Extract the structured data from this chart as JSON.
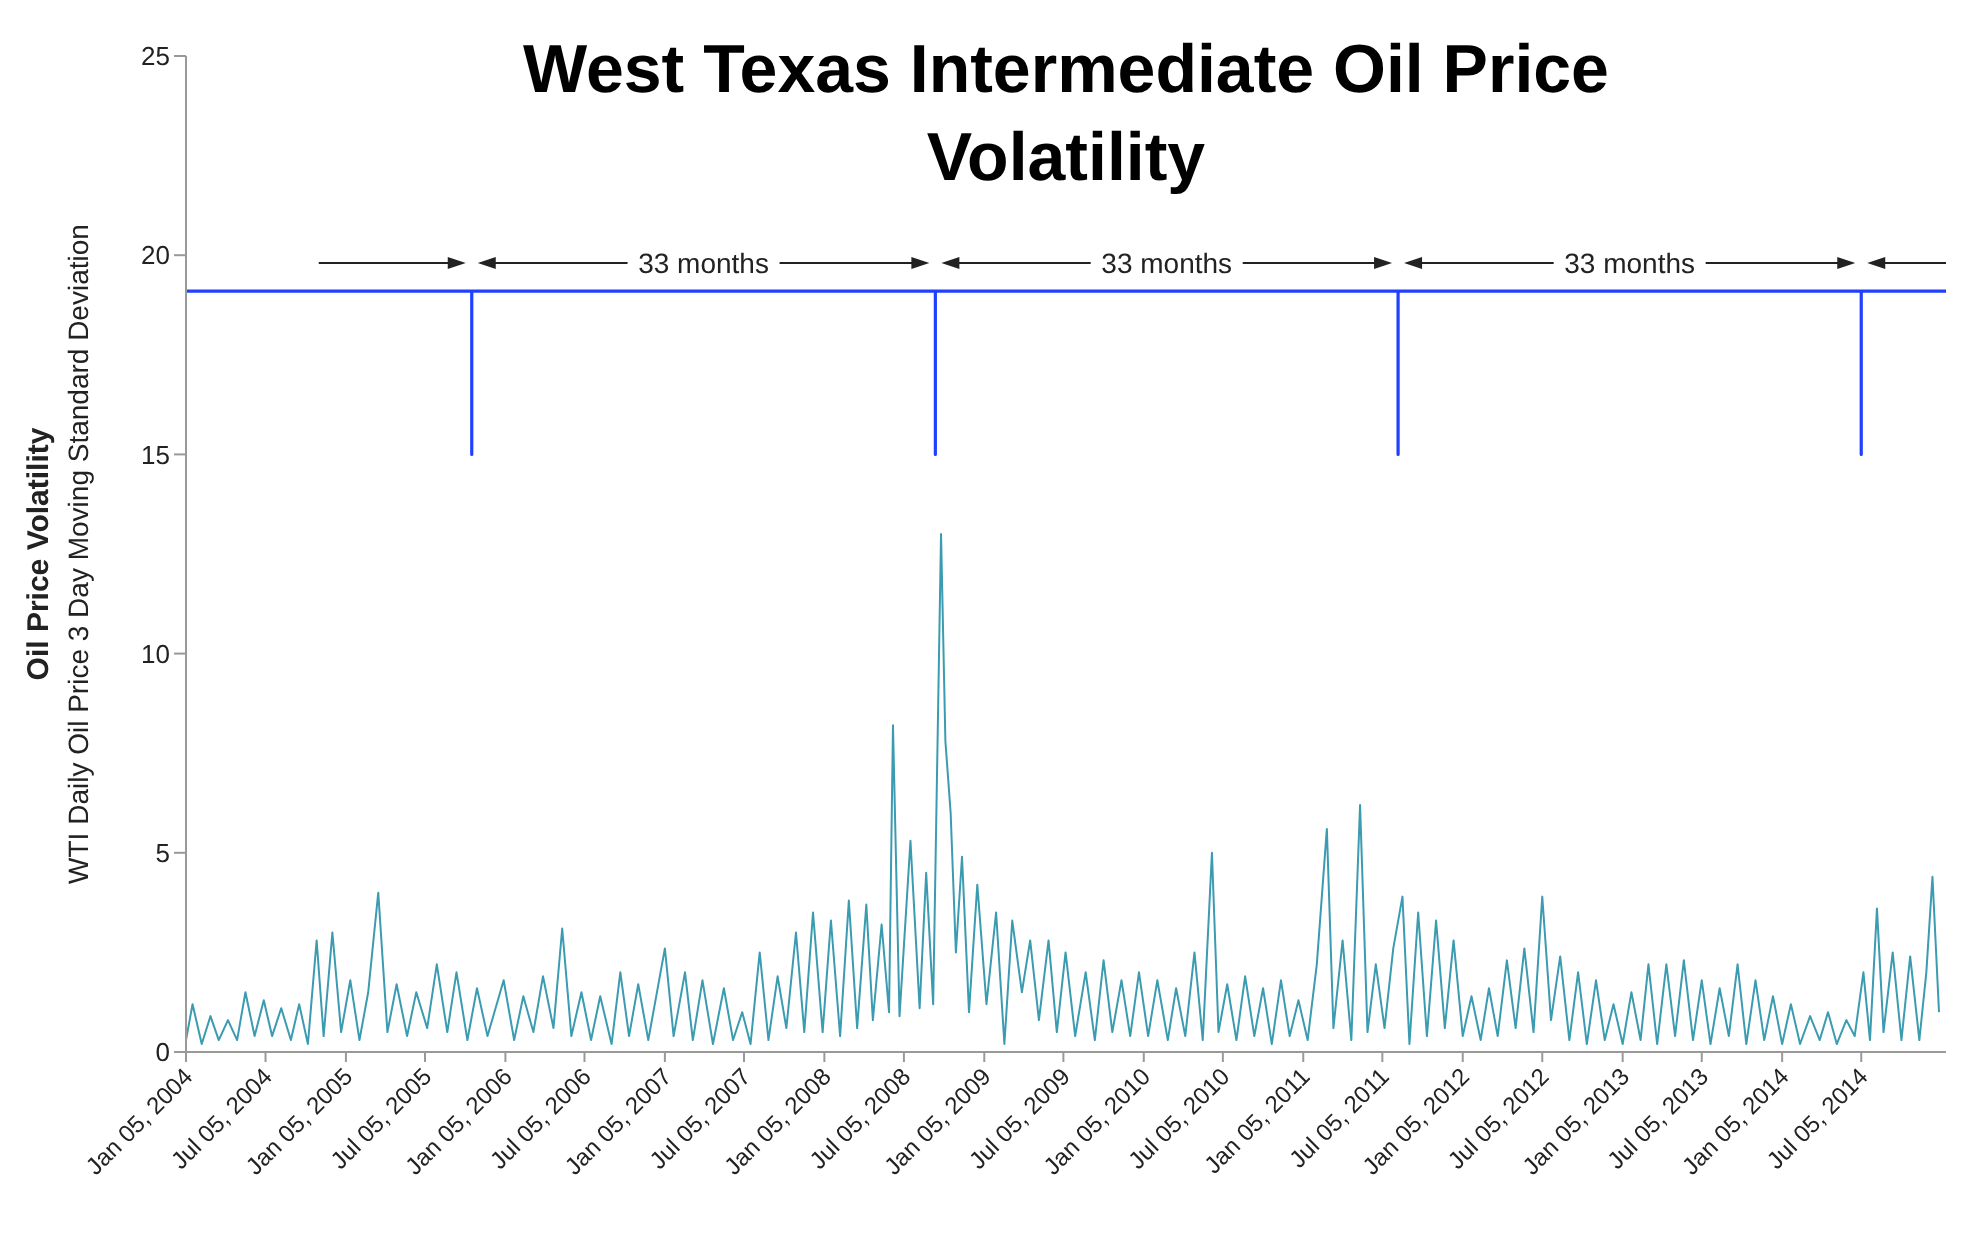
{
  "chart_data": {
    "type": "line",
    "title": "West Texas Intermediate Oil Price Volatility",
    "ylabel": "Oil Price Volatility\nWTI Daily Oil Price 3 Day Moving Standard Deviation",
    "xlim": [
      "2004-01-05",
      "2015-01-15"
    ],
    "xticks": [
      {
        "value": "2004-01-05",
        "label": "Jan 05, 2004"
      },
      {
        "value": "2004-07-05",
        "label": "Jul 05, 2004"
      },
      {
        "value": "2005-01-05",
        "label": "Jan 05, 2005"
      },
      {
        "value": "2005-07-05",
        "label": "Jul 05, 2005"
      },
      {
        "value": "2006-01-05",
        "label": "Jan 05, 2006"
      },
      {
        "value": "2006-07-05",
        "label": "Jul 05, 2006"
      },
      {
        "value": "2007-01-05",
        "label": "Jan 05, 2007"
      },
      {
        "value": "2007-07-05",
        "label": "Jul 05, 2007"
      },
      {
        "value": "2008-01-05",
        "label": "Jan 05, 2008"
      },
      {
        "value": "2008-07-05",
        "label": "Jul 05, 2008"
      },
      {
        "value": "2009-01-05",
        "label": "Jan 05, 2009"
      },
      {
        "value": "2009-07-05",
        "label": "Jul 05, 2009"
      },
      {
        "value": "2010-01-05",
        "label": "Jan 05, 2010"
      },
      {
        "value": "2010-07-05",
        "label": "Jul 05, 2010"
      },
      {
        "value": "2011-01-05",
        "label": "Jan 05, 2011"
      },
      {
        "value": "2011-07-05",
        "label": "Jul 05, 2011"
      },
      {
        "value": "2012-01-05",
        "label": "Jan 05, 2012"
      },
      {
        "value": "2012-07-05",
        "label": "Jul 05, 2012"
      },
      {
        "value": "2013-01-05",
        "label": "Jan 05, 2013"
      },
      {
        "value": "2013-07-05",
        "label": "Jul 05, 2013"
      },
      {
        "value": "2014-01-05",
        "label": "Jan 05, 2014"
      },
      {
        "value": "2014-07-05",
        "label": "Jul 05, 2014"
      }
    ],
    "ylim": [
      0,
      25
    ],
    "yticks": [
      0,
      5,
      10,
      15,
      20,
      25
    ],
    "annotations": [
      "33 months",
      "33 months",
      "33 months"
    ],
    "series": [
      {
        "color": "#3b9bb0",
        "x": [
          "2004-01-05",
          "2004-01-20",
          "2004-02-10",
          "2004-03-01",
          "2004-03-20",
          "2004-04-10",
          "2004-05-01",
          "2004-05-20",
          "2004-06-10",
          "2004-07-01",
          "2004-07-20",
          "2004-08-10",
          "2004-09-01",
          "2004-09-20",
          "2004-10-10",
          "2004-10-30",
          "2004-11-15",
          "2004-12-05",
          "2004-12-25",
          "2005-01-15",
          "2005-02-05",
          "2005-02-25",
          "2005-03-20",
          "2005-04-10",
          "2005-05-01",
          "2005-05-25",
          "2005-06-15",
          "2005-07-10",
          "2005-08-01",
          "2005-08-25",
          "2005-09-15",
          "2005-10-10",
          "2005-11-01",
          "2005-11-25",
          "2006-01-01",
          "2006-01-25",
          "2006-02-15",
          "2006-03-10",
          "2006-04-01",
          "2006-04-25",
          "2006-05-15",
          "2006-06-05",
          "2006-06-28",
          "2006-07-20",
          "2006-08-10",
          "2006-09-05",
          "2006-09-25",
          "2006-10-15",
          "2006-11-05",
          "2006-11-28",
          "2007-01-05",
          "2007-01-25",
          "2007-02-20",
          "2007-03-10",
          "2007-04-01",
          "2007-04-25",
          "2007-05-20",
          "2007-06-10",
          "2007-07-01",
          "2007-07-20",
          "2007-08-10",
          "2007-08-30",
          "2007-09-20",
          "2007-10-10",
          "2007-11-01",
          "2007-11-20",
          "2007-12-10",
          "2008-01-01",
          "2008-01-20",
          "2008-02-10",
          "2008-03-01",
          "2008-03-20",
          "2008-04-10",
          "2008-04-25",
          "2008-05-15",
          "2008-06-01",
          "2008-06-10",
          "2008-06-25",
          "2008-07-20",
          "2008-08-10",
          "2008-08-25",
          "2008-09-10",
          "2008-09-28",
          "2008-10-08",
          "2008-10-20",
          "2008-11-01",
          "2008-11-15",
          "2008-12-01",
          "2008-12-20",
          "2009-01-10",
          "2009-02-01",
          "2009-02-20",
          "2009-03-10",
          "2009-04-01",
          "2009-04-20",
          "2009-05-10",
          "2009-06-01",
          "2009-06-20",
          "2009-07-10",
          "2009-08-01",
          "2009-08-25",
          "2009-09-15",
          "2009-10-05",
          "2009-10-25",
          "2009-11-15",
          "2009-12-05",
          "2009-12-25",
          "2010-01-15",
          "2010-02-05",
          "2010-03-01",
          "2010-03-20",
          "2010-04-10",
          "2010-05-01",
          "2010-05-20",
          "2010-06-10",
          "2010-06-25",
          "2010-07-15",
          "2010-08-05",
          "2010-08-25",
          "2010-09-15",
          "2010-10-05",
          "2010-10-25",
          "2010-11-15",
          "2010-12-05",
          "2010-12-25",
          "2011-01-15",
          "2011-02-05",
          "2011-02-28",
          "2011-03-15",
          "2011-04-05",
          "2011-04-25",
          "2011-05-15",
          "2011-06-01",
          "2011-06-20",
          "2011-07-10",
          "2011-07-30",
          "2011-08-20",
          "2011-09-05",
          "2011-09-25",
          "2011-10-15",
          "2011-11-05",
          "2011-11-25",
          "2011-12-15",
          "2012-01-05",
          "2012-01-25",
          "2012-02-15",
          "2012-03-05",
          "2012-03-25",
          "2012-04-15",
          "2012-05-05",
          "2012-05-25",
          "2012-06-15",
          "2012-07-05",
          "2012-07-25",
          "2012-08-15",
          "2012-09-05",
          "2012-09-25",
          "2012-10-15",
          "2012-11-05",
          "2012-11-25",
          "2012-12-15",
          "2013-01-05",
          "2013-01-25",
          "2013-02-15",
          "2013-03-05",
          "2013-03-25",
          "2013-04-15",
          "2013-05-05",
          "2013-05-25",
          "2013-06-15",
          "2013-07-05",
          "2013-07-25",
          "2013-08-15",
          "2013-09-05",
          "2013-09-25",
          "2013-10-15",
          "2013-11-05",
          "2013-11-25",
          "2013-12-15",
          "2014-01-05",
          "2014-01-25",
          "2014-02-15",
          "2014-03-10",
          "2014-04-01",
          "2014-04-20",
          "2014-05-10",
          "2014-06-01",
          "2014-06-20",
          "2014-07-10",
          "2014-07-25",
          "2014-08-10",
          "2014-08-25",
          "2014-09-15",
          "2014-10-05",
          "2014-10-25",
          "2014-11-15",
          "2014-12-01",
          "2014-12-15",
          "2014-12-30"
        ],
        "values": [
          0.3,
          1.2,
          0.2,
          0.9,
          0.3,
          0.8,
          0.3,
          1.5,
          0.4,
          1.3,
          0.4,
          1.1,
          0.3,
          1.2,
          0.2,
          2.8,
          0.4,
          3.0,
          0.5,
          1.8,
          0.3,
          1.5,
          4.0,
          0.5,
          1.7,
          0.4,
          1.5,
          0.6,
          2.2,
          0.5,
          2.0,
          0.3,
          1.6,
          0.4,
          1.8,
          0.3,
          1.4,
          0.5,
          1.9,
          0.6,
          3.1,
          0.4,
          1.5,
          0.3,
          1.4,
          0.2,
          2.0,
          0.4,
          1.7,
          0.3,
          2.6,
          0.4,
          2.0,
          0.3,
          1.8,
          0.2,
          1.6,
          0.3,
          1.0,
          0.2,
          2.5,
          0.3,
          1.9,
          0.6,
          3.0,
          0.5,
          3.5,
          0.5,
          3.3,
          0.4,
          3.8,
          0.6,
          3.7,
          0.8,
          3.2,
          1.0,
          8.2,
          0.9,
          5.3,
          1.1,
          4.5,
          1.2,
          13.0,
          7.8,
          6.0,
          2.5,
          4.9,
          1.0,
          4.2,
          1.2,
          3.5,
          0.2,
          3.3,
          1.5,
          2.8,
          0.8,
          2.8,
          0.5,
          2.5,
          0.4,
          2.0,
          0.3,
          2.3,
          0.5,
          1.8,
          0.4,
          2.0,
          0.4,
          1.8,
          0.3,
          1.6,
          0.4,
          2.5,
          0.3,
          5.0,
          0.5,
          1.7,
          0.3,
          1.9,
          0.4,
          1.6,
          0.2,
          1.8,
          0.4,
          1.3,
          0.3,
          2.2,
          5.6,
          0.6,
          2.8,
          0.3,
          6.2,
          0.5,
          2.2,
          0.6,
          2.6,
          3.9,
          0.2,
          3.5,
          0.4,
          3.3,
          0.6,
          2.8,
          0.4,
          1.4,
          0.3,
          1.6,
          0.4,
          2.3,
          0.6,
          2.6,
          0.5,
          3.9,
          0.8,
          2.4,
          0.3,
          2.0,
          0.2,
          1.8,
          0.3,
          1.2,
          0.2,
          1.5,
          0.3,
          2.2,
          0.2,
          2.2,
          0.4,
          2.3,
          0.3,
          1.8,
          0.2,
          1.6,
          0.4,
          2.2,
          0.2,
          1.8,
          0.3,
          1.4,
          0.2,
          1.2,
          0.2,
          0.9,
          0.3,
          1.0,
          0.2,
          0.8,
          0.4,
          2.0,
          0.3,
          3.6,
          0.5,
          2.5,
          0.3,
          2.4,
          0.3,
          2.0,
          4.4,
          1.0
        ]
      },
      {
        "color": "#2040ff",
        "x": [
          "2004-01-05",
          "2005-10-20",
          "2005-10-20",
          "2005-10-20",
          "2008-09-15",
          "2008-09-15",
          "2008-09-15",
          "2011-08-10",
          "2011-08-10",
          "2011-08-10",
          "2014-07-05",
          "2014-07-05",
          "2014-07-05",
          "2015-01-15"
        ],
        "values": [
          19.1,
          19.1,
          15,
          19.1,
          19.1,
          15,
          19.1,
          19.1,
          15,
          19.1,
          19.1,
          15,
          19.1,
          19.1
        ]
      }
    ]
  }
}
